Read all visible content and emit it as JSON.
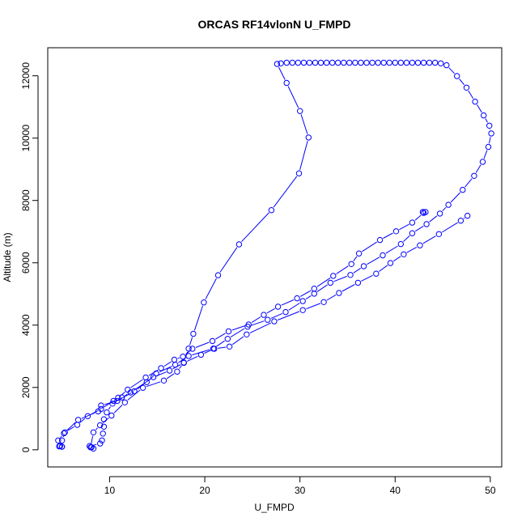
{
  "chart_data": {
    "type": "line",
    "title": "ORCAS RF14vlonN U_FMPD",
    "xlabel": "U_FMPD",
    "ylabel": "Altitude (m)",
    "xlim": [
      3.5,
      51.2
    ],
    "ylim": [
      -550,
      12900
    ],
    "xticks": [
      10,
      20,
      30,
      40,
      50
    ],
    "yticks": [
      0,
      2000,
      4000,
      6000,
      8000,
      10000,
      12000
    ],
    "xtick_labels": [
      "10",
      "20",
      "30",
      "40",
      "50"
    ],
    "ytick_labels": [
      "0",
      "2000",
      "4000",
      "6000",
      "8000",
      "10000",
      "12000"
    ],
    "series_color": "#0000ff",
    "marker": "open-circle",
    "grid": false,
    "series": [
      {
        "points": [
          [
            8.3,
            40
          ],
          [
            8.1,
            80
          ],
          [
            7.9,
            120
          ],
          [
            9.0,
            200
          ],
          [
            9.2,
            300
          ],
          [
            9.3,
            520
          ],
          [
            9.4,
            740
          ],
          [
            9.4,
            980
          ],
          [
            9.7,
            1200
          ],
          [
            10.3,
            1480
          ],
          [
            11.3,
            1680
          ],
          [
            12.2,
            1840
          ],
          [
            14.6,
            2330
          ],
          [
            16.3,
            2540
          ],
          [
            17.8,
            2790
          ],
          [
            19.6,
            3050
          ],
          [
            21.0,
            3240
          ],
          [
            22.6,
            3310
          ],
          [
            24.4,
            3700
          ],
          [
            27.3,
            4120
          ],
          [
            30.3,
            4480
          ],
          [
            32.5,
            4740
          ],
          [
            34.1,
            5030
          ],
          [
            36.1,
            5360
          ],
          [
            38.0,
            5650
          ],
          [
            39.5,
            5990
          ],
          [
            40.9,
            6270
          ],
          [
            42.6,
            6560
          ],
          [
            44.6,
            6920
          ],
          [
            46.9,
            7350
          ],
          [
            47.6,
            7510
          ]
        ]
      },
      {
        "points": [
          [
            42.9,
            7630
          ],
          [
            43.2,
            7630
          ],
          [
            43.0,
            7600
          ],
          [
            41.8,
            7290
          ],
          [
            40.1,
            7010
          ],
          [
            38.4,
            6730
          ],
          [
            36.2,
            6300
          ],
          [
            35.4,
            5960
          ],
          [
            33.5,
            5580
          ],
          [
            31.5,
            5170
          ],
          [
            29.7,
            4860
          ],
          [
            27.7,
            4590
          ],
          [
            26.2,
            4330
          ],
          [
            24.6,
            4020
          ],
          [
            22.5,
            3800
          ],
          [
            20.8,
            3490
          ],
          [
            18.7,
            3240
          ],
          [
            17.7,
            2990
          ],
          [
            16.8,
            2890
          ],
          [
            15.4,
            2620
          ],
          [
            13.8,
            2320
          ],
          [
            11.9,
            1930
          ],
          [
            10.9,
            1670
          ],
          [
            10.4,
            1570
          ],
          [
            9.1,
            1310
          ],
          [
            7.7,
            1080
          ],
          [
            6.6,
            800
          ],
          [
            5.3,
            560
          ],
          [
            5.0,
            300
          ],
          [
            4.8,
            120
          ],
          [
            5.0,
            100
          ]
        ]
      },
      {
        "points": [
          [
            5.0,
            100
          ],
          [
            4.7,
            110
          ],
          [
            4.6,
            300
          ],
          [
            5.2,
            530
          ],
          [
            6.7,
            960
          ],
          [
            8.8,
            1230
          ],
          [
            9.1,
            1420
          ],
          [
            10.8,
            1570
          ],
          [
            12.6,
            1880
          ],
          [
            13.9,
            2170
          ],
          [
            14.9,
            2450
          ],
          [
            16.9,
            2730
          ],
          [
            18.3,
            3010
          ],
          [
            20.9,
            3250
          ],
          [
            22.4,
            3560
          ],
          [
            24.5,
            3950
          ],
          [
            26.6,
            4170
          ],
          [
            28.5,
            4420
          ],
          [
            30.3,
            4770
          ],
          [
            31.5,
            5010
          ],
          [
            33.2,
            5360
          ],
          [
            35.3,
            5610
          ],
          [
            36.7,
            5890
          ],
          [
            38.7,
            6240
          ],
          [
            40.6,
            6600
          ],
          [
            41.8,
            6950
          ],
          [
            43.3,
            7240
          ],
          [
            44.7,
            7580
          ],
          [
            45.6,
            7860
          ],
          [
            47.1,
            8340
          ],
          [
            48.3,
            8790
          ],
          [
            49.2,
            9240
          ],
          [
            49.8,
            9720
          ],
          [
            50.1,
            10150
          ],
          [
            49.9,
            10400
          ],
          [
            49.3,
            10730
          ],
          [
            48.4,
            11170
          ],
          [
            47.5,
            11620
          ],
          [
            46.5,
            11990
          ],
          [
            45.4,
            12340
          ],
          [
            44.8,
            12400
          ],
          [
            44.2,
            12420
          ],
          [
            43.6,
            12420
          ],
          [
            43.0,
            12420
          ],
          [
            42.4,
            12420
          ],
          [
            41.8,
            12420
          ],
          [
            41.2,
            12420
          ],
          [
            40.6,
            12420
          ],
          [
            40.0,
            12420
          ],
          [
            39.4,
            12420
          ],
          [
            38.8,
            12420
          ],
          [
            38.2,
            12420
          ],
          [
            37.6,
            12420
          ],
          [
            37.0,
            12420
          ],
          [
            36.4,
            12420
          ],
          [
            35.8,
            12420
          ],
          [
            35.2,
            12420
          ],
          [
            34.6,
            12420
          ],
          [
            34.0,
            12420
          ],
          [
            33.4,
            12420
          ],
          [
            32.8,
            12420
          ],
          [
            32.2,
            12420
          ],
          [
            31.6,
            12420
          ],
          [
            31.0,
            12420
          ],
          [
            30.4,
            12420
          ],
          [
            29.8,
            12420
          ],
          [
            29.2,
            12420
          ],
          [
            28.6,
            12420
          ],
          [
            28.0,
            12400
          ],
          [
            27.6,
            12380
          ],
          [
            28.6,
            11770
          ],
          [
            30.0,
            10870
          ],
          [
            30.9,
            10020
          ],
          [
            29.9,
            8870
          ],
          [
            27.0,
            7690
          ],
          [
            23.6,
            6590
          ],
          [
            21.4,
            5600
          ],
          [
            19.9,
            4730
          ],
          [
            18.8,
            3720
          ],
          [
            18.3,
            3250
          ],
          [
            17.8,
            2800
          ],
          [
            17.1,
            2510
          ],
          [
            15.7,
            2220
          ],
          [
            13.5,
            1990
          ],
          [
            11.6,
            1520
          ],
          [
            10.2,
            1100
          ],
          [
            9.0,
            790
          ],
          [
            8.3,
            560
          ],
          [
            8.0,
            80
          ]
        ]
      }
    ]
  }
}
